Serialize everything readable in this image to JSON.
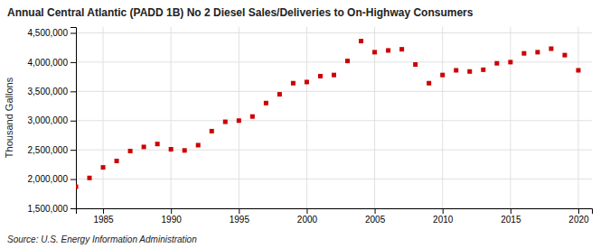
{
  "chart_data": {
    "type": "scatter",
    "title": "Annual Central Atlantic (PADD 1B) No 2 Diesel Sales/Deliveries to On-Highway Consumers",
    "ylabel": "Thousand Gallons",
    "source": "Source: U.S. Energy Information Administration",
    "x": [
      1983,
      1984,
      1985,
      1986,
      1987,
      1988,
      1989,
      1990,
      1991,
      1992,
      1993,
      1994,
      1995,
      1996,
      1997,
      1998,
      1999,
      2000,
      2001,
      2002,
      2003,
      2004,
      2005,
      2006,
      2007,
      2008,
      2009,
      2010,
      2011,
      2012,
      2013,
      2014,
      2015,
      2016,
      2017,
      2018,
      2019,
      2020
    ],
    "values": [
      1870000,
      2020000,
      2200000,
      2310000,
      2480000,
      2550000,
      2600000,
      2510000,
      2490000,
      2580000,
      2820000,
      2980000,
      3000000,
      3070000,
      3300000,
      3450000,
      3640000,
      3660000,
      3760000,
      3780000,
      4020000,
      4360000,
      4170000,
      4200000,
      4220000,
      3960000,
      3640000,
      3780000,
      3860000,
      3840000,
      3870000,
      3980000,
      4000000,
      4150000,
      4170000,
      4230000,
      4120000,
      3860000
    ],
    "color": "#cc0000",
    "marker": "square",
    "xlim": [
      1983,
      2021
    ],
    "xticks": [
      1985,
      1990,
      1995,
      2000,
      2005,
      2010,
      2015,
      2020
    ],
    "ylim": [
      1500000,
      4600000
    ],
    "yticks": [
      {
        "value": 1500000,
        "label": "1,500,000"
      },
      {
        "value": 2000000,
        "label": "2,000,000"
      },
      {
        "value": 2500000,
        "label": "2,500,000"
      },
      {
        "value": 3000000,
        "label": "3,000,000"
      },
      {
        "value": 3500000,
        "label": "3,500,000"
      },
      {
        "value": 4000000,
        "label": "4,000,000"
      },
      {
        "value": 4500000,
        "label": "4,500,000"
      }
    ],
    "grid": true
  }
}
